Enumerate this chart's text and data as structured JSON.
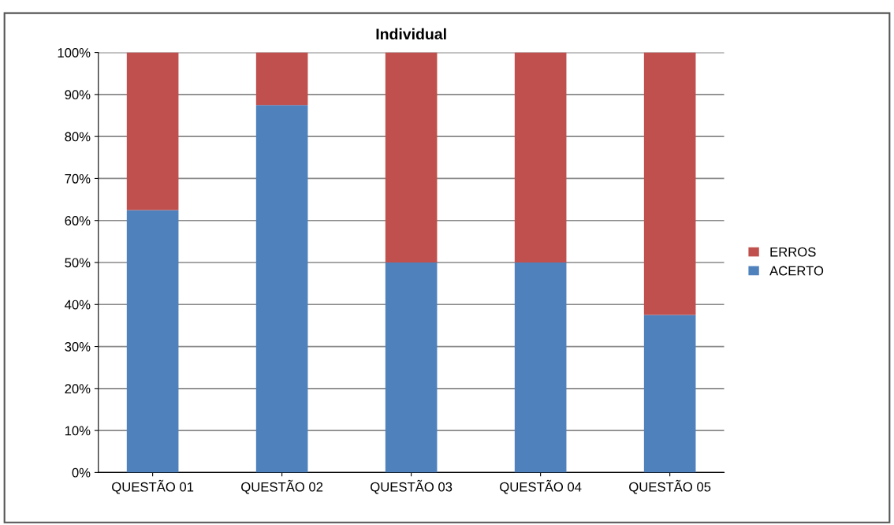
{
  "chart_data": {
    "type": "bar",
    "title": "Individual",
    "stacked": true,
    "categories": [
      "QUESTÃO 01",
      "QUESTÃO 02",
      "QUESTÃO 03",
      "QUESTÃO 04",
      "QUESTÃO 05"
    ],
    "series": [
      {
        "name": "ACERTO",
        "color": "#4f81bd",
        "values": [
          62.5,
          87.5,
          50,
          50,
          37.5
        ]
      },
      {
        "name": "ERROS",
        "color": "#c0504d",
        "values": [
          37.5,
          12.5,
          50,
          50,
          62.5
        ]
      }
    ],
    "ylim": [
      0,
      100
    ],
    "yticks": [
      {
        "value": 0,
        "label": "0%"
      },
      {
        "value": 10,
        "label": "10%"
      },
      {
        "value": 20,
        "label": "20%"
      },
      {
        "value": 30,
        "label": "30%"
      },
      {
        "value": 40,
        "label": "40%"
      },
      {
        "value": 50,
        "label": "50%"
      },
      {
        "value": 60,
        "label": "60%"
      },
      {
        "value": 70,
        "label": "70%"
      },
      {
        "value": 80,
        "label": "80%"
      },
      {
        "value": 90,
        "label": "90%"
      },
      {
        "value": 100,
        "label": "100%"
      }
    ],
    "grid": "y",
    "legend": "right"
  }
}
